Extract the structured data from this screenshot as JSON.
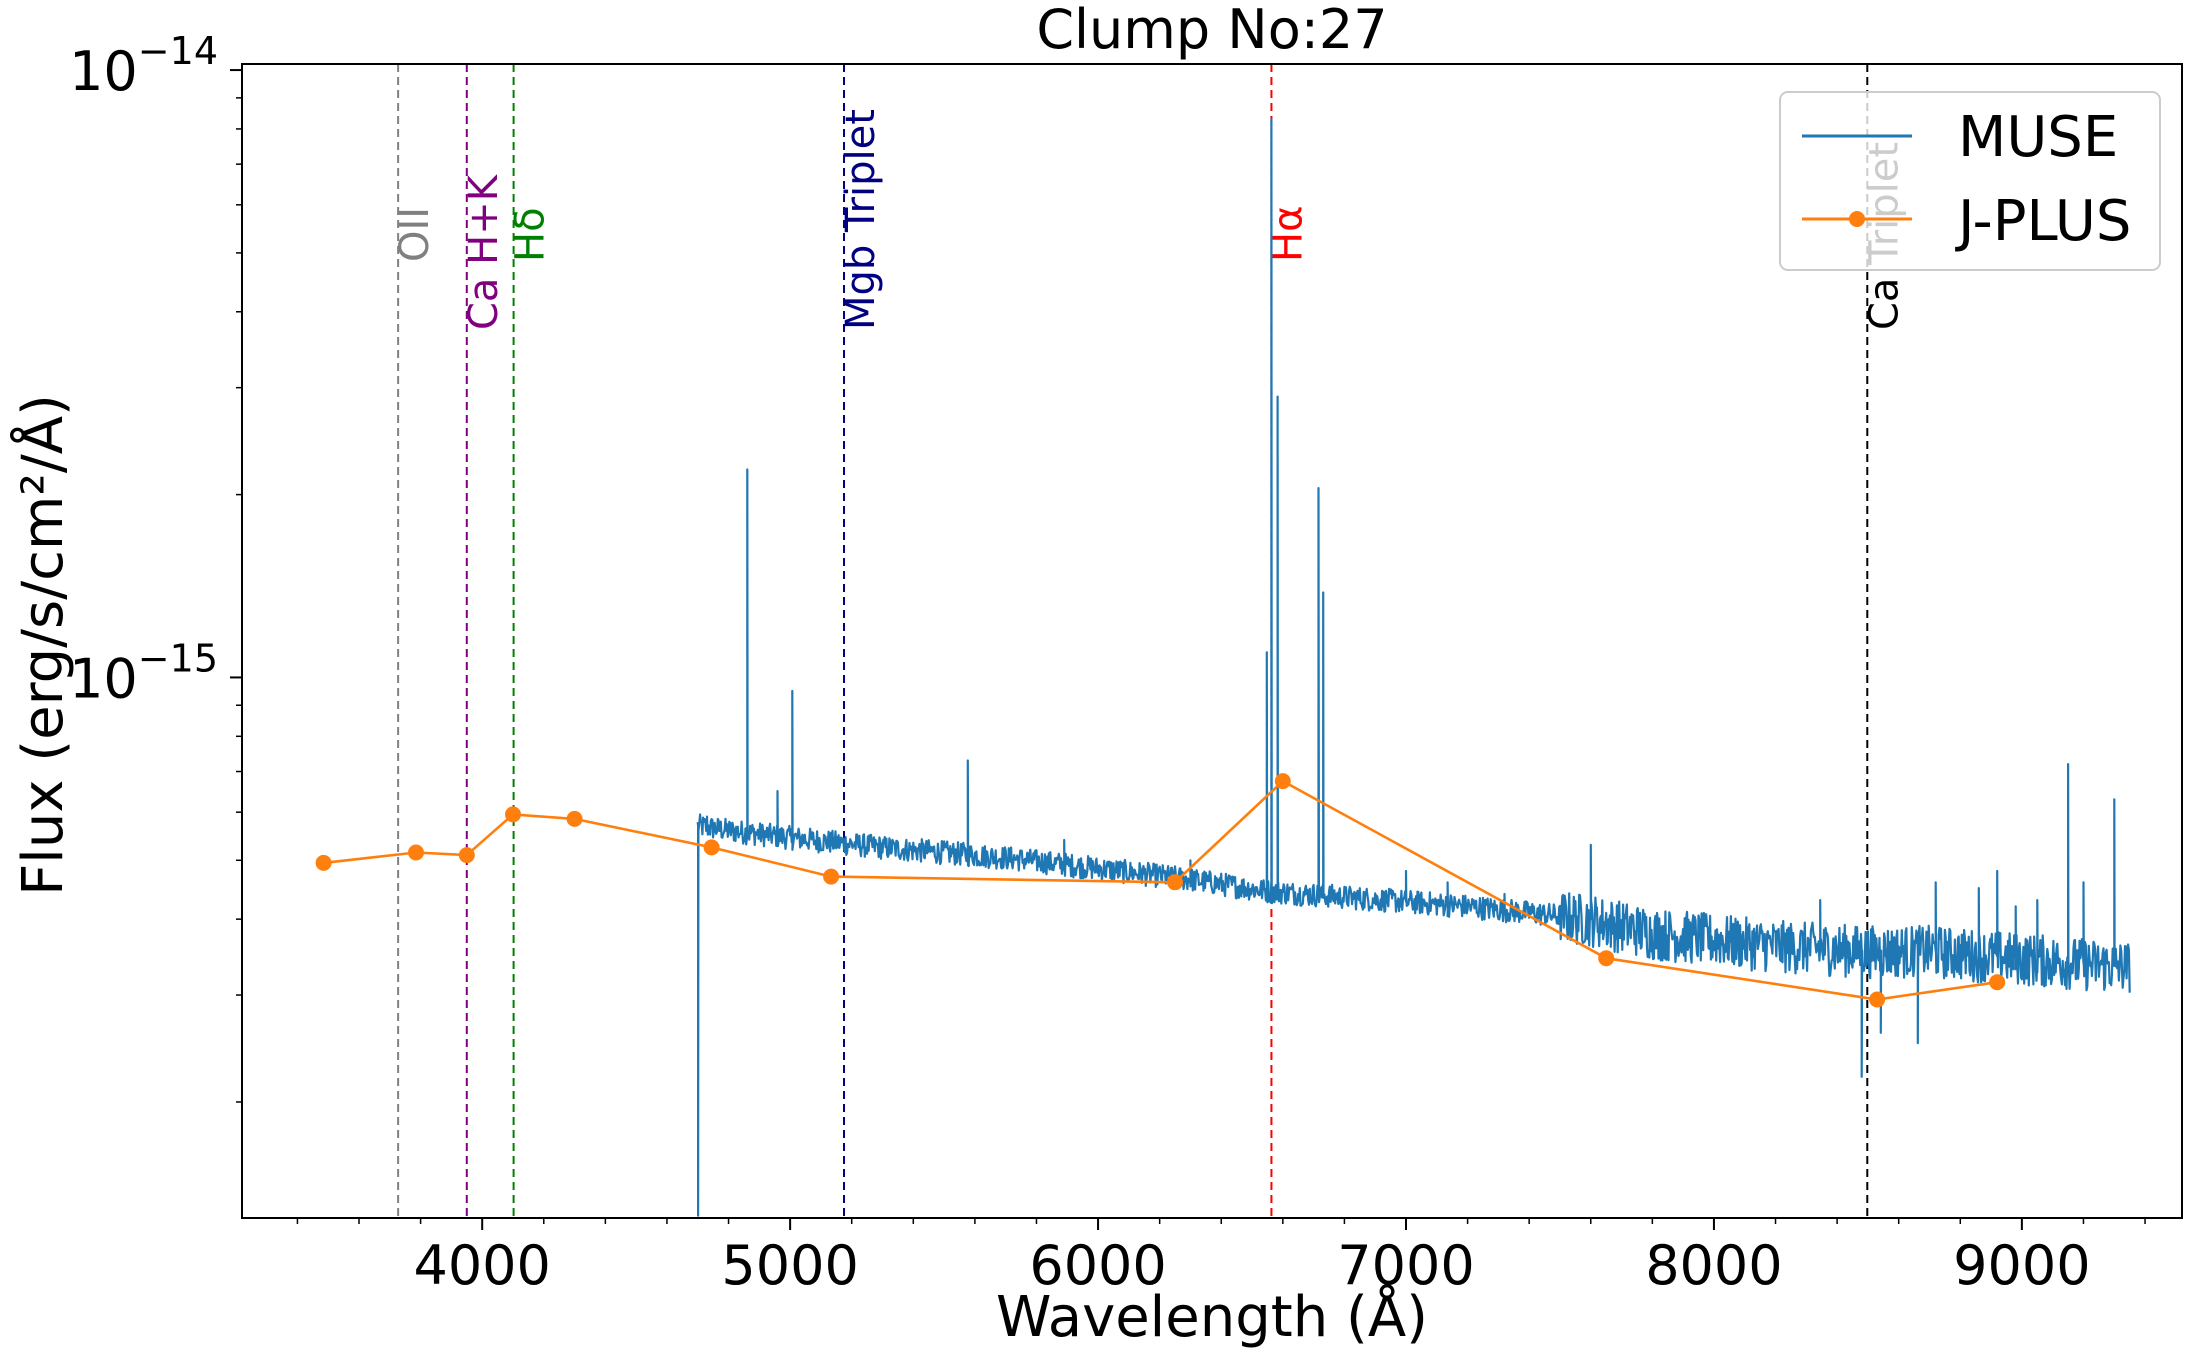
{
  "chart_data": {
    "type": "line",
    "title": "Clump No:27",
    "xlabel": "Wavelength (Å)",
    "ylabel": "Flux (erg/s/cm²/Å)",
    "xlim": [
      3220,
      9520
    ],
    "ylim_log10": [
      -15.89,
      -13.99
    ],
    "yscale": "log",
    "grid": false,
    "legend_placement": "top-right",
    "x_ticks": [
      4000,
      5000,
      6000,
      7000,
      8000,
      9000
    ],
    "x_tick_labels": [
      "4000",
      "5000",
      "6000",
      "7000",
      "8000",
      "9000"
    ],
    "y_ticks": [
      {
        "base": "10",
        "exp": "−14",
        "log": -14
      },
      {
        "base": "10",
        "exp": "−15",
        "log": -15
      }
    ],
    "lines": [
      {
        "label": "OII",
        "x": 3727,
        "color": "#808080"
      },
      {
        "label": "Ca H+K",
        "x": 3950,
        "color": "#800080"
      },
      {
        "label": "Hδ",
        "x": 4102,
        "color": "#008000"
      },
      {
        "label": "Mgb Triplet",
        "x": 5175,
        "color": "#000080"
      },
      {
        "label": "Hα",
        "x": 6563,
        "color": "#ff0000"
      },
      {
        "label": "Ca Triplet",
        "x": 8498,
        "color": "#000000"
      }
    ],
    "series": [
      {
        "name": "MUSE",
        "color": "#1f77b4",
        "style": "line",
        "continuum": [
          [
            4700,
            5.7e-16
          ],
          [
            4800,
            5.6e-16
          ],
          [
            5000,
            5.45e-16
          ],
          [
            5300,
            5.25e-16
          ],
          [
            5700,
            5.05e-16
          ],
          [
            6000,
            4.85e-16
          ],
          [
            6300,
            4.65e-16
          ],
          [
            6550,
            4.45e-16
          ],
          [
            6800,
            4.35e-16
          ],
          [
            7200,
            4.2e-16
          ],
          [
            7600,
            4e-16
          ],
          [
            7800,
            3.8e-16
          ],
          [
            8200,
            3.62e-16
          ],
          [
            8500,
            3.55e-16
          ],
          [
            8700,
            3.55e-16
          ],
          [
            9000,
            3.45e-16
          ],
          [
            9300,
            3.35e-16
          ]
        ],
        "features": [
          [
            4701,
            1.3e-16
          ],
          [
            4730,
            5.9e-16
          ],
          [
            4861,
            2.2e-15
          ],
          [
            4959,
            6.5e-16
          ],
          [
            5007,
            9.5e-16
          ],
          [
            5577,
            7.3e-16
          ],
          [
            5890,
            5.4e-16
          ],
          [
            6300,
            5e-16
          ],
          [
            6548,
            1.1e-15
          ],
          [
            6563,
            8.3e-15
          ],
          [
            6583,
            2.9e-15
          ],
          [
            6716,
            2.05e-15
          ],
          [
            6731,
            1.38e-15
          ],
          [
            7000,
            4.8e-16
          ],
          [
            7135,
            4.6e-16
          ],
          [
            7320,
            4.4e-16
          ],
          [
            7600,
            5.3e-16
          ],
          [
            7913,
            4.1e-16
          ],
          [
            8345,
            4.3e-16
          ],
          [
            8480,
            2.2e-16
          ],
          [
            8542,
            2.6e-16
          ],
          [
            8662,
            2.5e-16
          ],
          [
            8720,
            4.6e-16
          ],
          [
            8860,
            4.5e-16
          ],
          [
            8920,
            4.8e-16
          ],
          [
            8980,
            4.2e-16
          ],
          [
            9050,
            4.3e-16
          ],
          [
            9150,
            7.2e-16
          ],
          [
            9200,
            4.6e-16
          ],
          [
            9300,
            6.3e-16
          ]
        ]
      },
      {
        "name": "J-PLUS",
        "color": "#ff7f0e",
        "style": "line-marker",
        "x": [
          3485,
          3785,
          3950,
          4100,
          4300,
          4745,
          5133,
          6250,
          6600,
          7650,
          8530,
          8920
        ],
        "y": [
          4.95e-16,
          5.15e-16,
          5.1e-16,
          5.95e-16,
          5.85e-16,
          5.25e-16,
          4.7e-16,
          4.6e-16,
          6.75e-16,
          3.45e-16,
          2.95e-16,
          3.15e-16
        ]
      }
    ]
  }
}
